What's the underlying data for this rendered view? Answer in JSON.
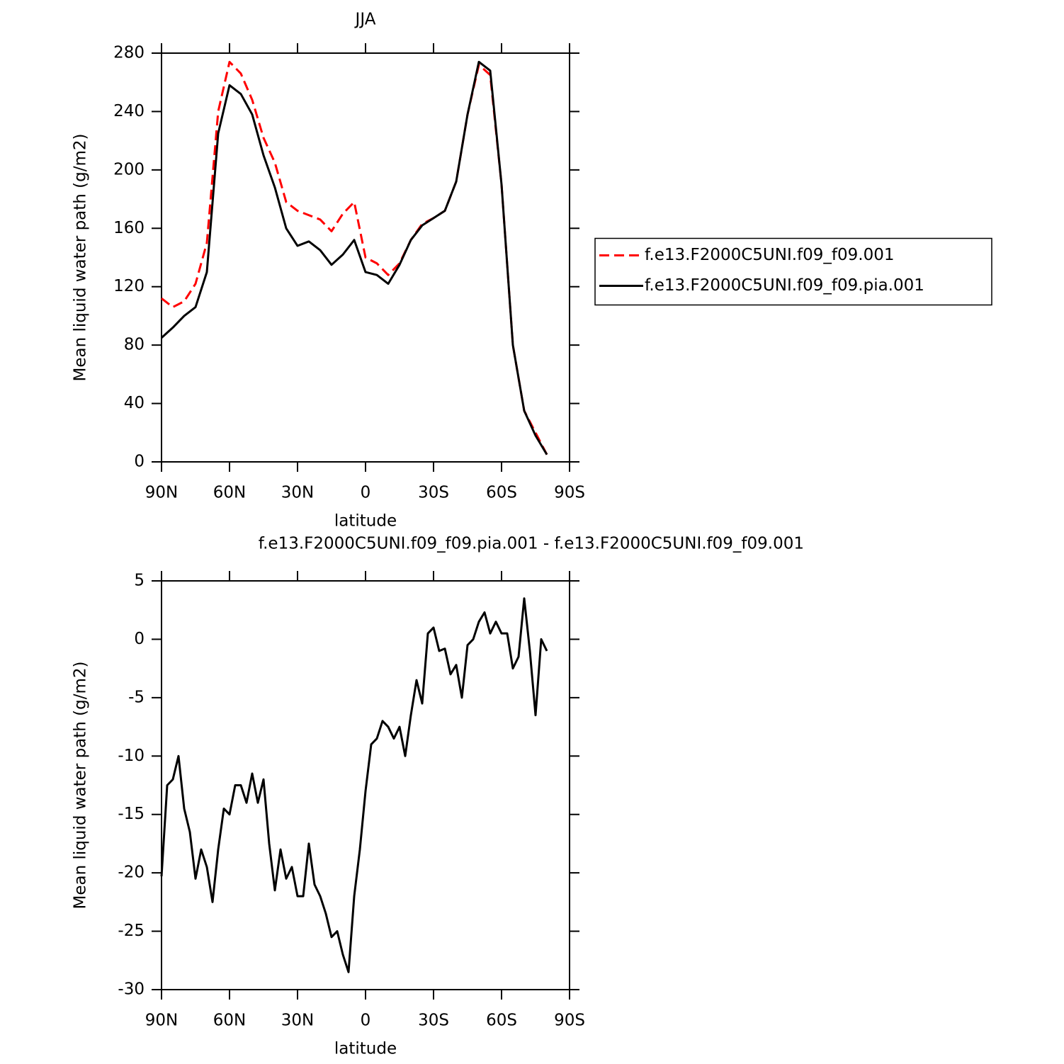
{
  "chart_data": [
    {
      "type": "line",
      "title": "JJA",
      "x_label": "latitude",
      "y_label": "Mean liquid water path (g/m2)",
      "x": [
        90,
        85,
        80,
        75,
        70,
        65,
        60,
        55,
        50,
        45,
        40,
        35,
        30,
        25,
        20,
        15,
        10,
        5,
        0,
        -5,
        -10,
        -15,
        -20,
        -25,
        -30,
        -35,
        -40,
        -45,
        -50,
        -55,
        -60,
        -65,
        -70,
        -75,
        -80
      ],
      "series": [
        {
          "name": "f.e13.F2000C5UNI.f09_f09.001",
          "color": "#ff0000",
          "dashed": true,
          "values": [
            112,
            106,
            110,
            122,
            150,
            240,
            274,
            266,
            248,
            222,
            205,
            178,
            172,
            169,
            166,
            158,
            170,
            178,
            140,
            136,
            128,
            136,
            152,
            163,
            167,
            172,
            192,
            238,
            272,
            265,
            190,
            80,
            35,
            20,
            5
          ]
        },
        {
          "name": "f.e13.F2000C5UNI.f09_f09.pia.001",
          "color": "#000000",
          "dashed": false,
          "values": [
            85,
            92,
            100,
            106,
            130,
            225,
            258,
            252,
            238,
            210,
            188,
            160,
            148,
            151,
            145,
            135,
            142,
            152,
            130,
            128,
            122,
            135,
            152,
            162,
            167,
            172,
            192,
            238,
            274,
            268,
            190,
            80,
            35,
            18,
            5
          ]
        }
      ],
      "xlim": [
        90,
        -90
      ],
      "xticks": [
        {
          "value": 90,
          "label": "90N"
        },
        {
          "value": 60,
          "label": "60N"
        },
        {
          "value": 30,
          "label": "30N"
        },
        0,
        {
          "value": -30,
          "label": "30S"
        },
        {
          "value": -60,
          "label": "60S"
        },
        {
          "value": -90,
          "label": "90S"
        }
      ],
      "ylim": [
        0,
        280
      ],
      "yticks": [
        0,
        40,
        80,
        120,
        160,
        200,
        240,
        280
      ],
      "legend": "right"
    },
    {
      "type": "line",
      "title": "f.e13.F2000C5UNI.f09_f09.pia.001 - f.e13.F2000C5UNI.f09_f09.001",
      "x_label": "latitude",
      "y_label": "Mean liquid water path (g/m2)",
      "x": [
        90,
        87.5,
        85,
        82.5,
        80,
        77.5,
        75,
        72.5,
        70,
        67.5,
        65,
        62.5,
        60,
        57.5,
        55,
        52.5,
        50,
        47.5,
        45,
        42.5,
        40,
        37.5,
        35,
        32.5,
        30,
        27.5,
        25,
        22.5,
        20,
        17.5,
        15,
        12.5,
        10,
        7.5,
        5,
        2.5,
        0,
        -2.5,
        -5,
        -7.5,
        -10,
        -12.5,
        -15,
        -17.5,
        -20,
        -22.5,
        -25,
        -27.5,
        -30,
        -32.5,
        -35,
        -37.5,
        -40,
        -42.5,
        -45,
        -47.5,
        -50,
        -52.5,
        -55,
        -57.5,
        -60,
        -62.5,
        -65,
        -67.5,
        -70,
        -72.5,
        -75,
        -77.5,
        -80
      ],
      "series": [
        {
          "color": "#000000",
          "dashed": false,
          "values": [
            -20.3,
            -12.5,
            -12,
            -10,
            -14.5,
            -16.5,
            -20.5,
            -18,
            -19.5,
            -22.5,
            -18,
            -14.5,
            -15,
            -12.5,
            -12.5,
            -14,
            -11.5,
            -14,
            -12,
            -17.5,
            -21.5,
            -18,
            -20.5,
            -19.5,
            -22,
            -22,
            -17.5,
            -21,
            -22,
            -23.5,
            -25.5,
            -25,
            -27,
            -28.5,
            -22,
            -18,
            -13,
            -9,
            -8.5,
            -7,
            -7.5,
            -8.5,
            -7.5,
            -10,
            -6.5,
            -3.5,
            -5.5,
            0.5,
            1,
            -1,
            -0.8,
            -3,
            -2.2,
            -5,
            -0.5,
            0,
            1.5,
            2.3,
            0.5,
            1.5,
            0.5,
            0.5,
            -2.5,
            -1.5,
            3.5,
            -1,
            -6.5,
            0,
            -1
          ]
        }
      ],
      "xlim": [
        90,
        -90
      ],
      "xticks": [
        {
          "value": 90,
          "label": "90N"
        },
        {
          "value": 60,
          "label": "60N"
        },
        {
          "value": 30,
          "label": "30N"
        },
        0,
        {
          "value": -30,
          "label": "30S"
        },
        {
          "value": -60,
          "label": "60S"
        },
        {
          "value": -90,
          "label": "90S"
        }
      ],
      "ylim": [
        -30,
        5
      ],
      "yticks": [
        -30,
        -25,
        -20,
        -15,
        -10,
        -5,
        0,
        5
      ]
    }
  ]
}
